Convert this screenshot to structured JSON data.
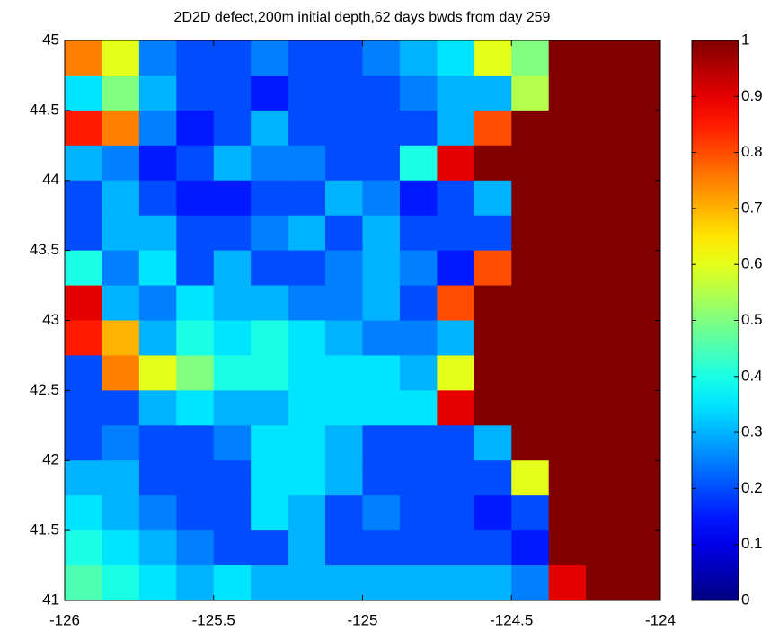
{
  "chart_data": {
    "type": "heatmap",
    "title": "2D2D defect,200m initial depth,62 days bwds from day 259",
    "colormap": "jet",
    "xlim": [
      -126,
      -124
    ],
    "ylim": [
      41,
      45
    ],
    "xticks": [
      -126,
      -125.5,
      -125,
      -124.5,
      -124
    ],
    "yticks": [
      41,
      41.5,
      42,
      42.5,
      43,
      43.5,
      44,
      44.5,
      45
    ],
    "z": [
      [
        0.75,
        0.6,
        0.25,
        0.2,
        0.2,
        0.25,
        0.2,
        0.2,
        0.25,
        0.3,
        0.35,
        0.6,
        0.5,
        1,
        1,
        1
      ],
      [
        0.35,
        0.5,
        0.3,
        0.2,
        0.2,
        0.15,
        0.2,
        0.2,
        0.2,
        0.25,
        0.3,
        0.3,
        0.55,
        1,
        1,
        1
      ],
      [
        0.85,
        0.75,
        0.25,
        0.15,
        0.2,
        0.3,
        0.2,
        0.2,
        0.2,
        0.2,
        0.3,
        0.8,
        1,
        1,
        1,
        1
      ],
      [
        0.3,
        0.25,
        0.15,
        0.2,
        0.3,
        0.25,
        0.25,
        0.2,
        0.2,
        0.4,
        0.9,
        1,
        1,
        1,
        1,
        1
      ],
      [
        0.2,
        0.3,
        0.2,
        0.15,
        0.15,
        0.2,
        0.2,
        0.3,
        0.25,
        0.15,
        0.2,
        0.3,
        1,
        1,
        1,
        1
      ],
      [
        0.2,
        0.3,
        0.3,
        0.2,
        0.2,
        0.25,
        0.3,
        0.2,
        0.3,
        0.2,
        0.2,
        0.2,
        1,
        1,
        1,
        1
      ],
      [
        0.4,
        0.25,
        0.35,
        0.2,
        0.3,
        0.2,
        0.2,
        0.25,
        0.3,
        0.25,
        0.15,
        0.8,
        1,
        1,
        1,
        1
      ],
      [
        0.9,
        0.3,
        0.25,
        0.35,
        0.3,
        0.3,
        0.25,
        0.25,
        0.3,
        0.2,
        0.8,
        1,
        1,
        1,
        1,
        1
      ],
      [
        0.85,
        0.7,
        0.3,
        0.4,
        0.35,
        0.4,
        0.35,
        0.3,
        0.25,
        0.25,
        0.3,
        1,
        1,
        1,
        1,
        1
      ],
      [
        0.2,
        0.75,
        0.6,
        0.5,
        0.4,
        0.4,
        0.35,
        0.35,
        0.35,
        0.3,
        0.6,
        1,
        1,
        1,
        1,
        1
      ],
      [
        0.2,
        0.2,
        0.3,
        0.35,
        0.3,
        0.3,
        0.35,
        0.35,
        0.35,
        0.35,
        0.9,
        1,
        1,
        1,
        1,
        1
      ],
      [
        0.2,
        0.25,
        0.2,
        0.2,
        0.25,
        0.35,
        0.35,
        0.3,
        0.2,
        0.2,
        0.2,
        0.3,
        1,
        1,
        1,
        1
      ],
      [
        0.3,
        0.3,
        0.2,
        0.2,
        0.2,
        0.35,
        0.35,
        0.3,
        0.2,
        0.2,
        0.2,
        0.2,
        0.6,
        1,
        1,
        1
      ],
      [
        0.35,
        0.3,
        0.25,
        0.2,
        0.2,
        0.35,
        0.3,
        0.2,
        0.25,
        0.2,
        0.2,
        0.15,
        0.2,
        1,
        1,
        1
      ],
      [
        0.4,
        0.35,
        0.3,
        0.25,
        0.2,
        0.2,
        0.3,
        0.2,
        0.2,
        0.2,
        0.2,
        0.2,
        0.15,
        1,
        1,
        1
      ],
      [
        0.45,
        0.4,
        0.35,
        0.3,
        0.35,
        0.3,
        0.3,
        0.3,
        0.3,
        0.3,
        0.3,
        0.3,
        0.25,
        0.9,
        1,
        1
      ]
    ],
    "colorbar": {
      "lim": [
        0,
        1
      ],
      "ticks": [
        0,
        0.1,
        0.2,
        0.3,
        0.4,
        0.5,
        0.6,
        0.7,
        0.8,
        0.9,
        1
      ]
    }
  }
}
